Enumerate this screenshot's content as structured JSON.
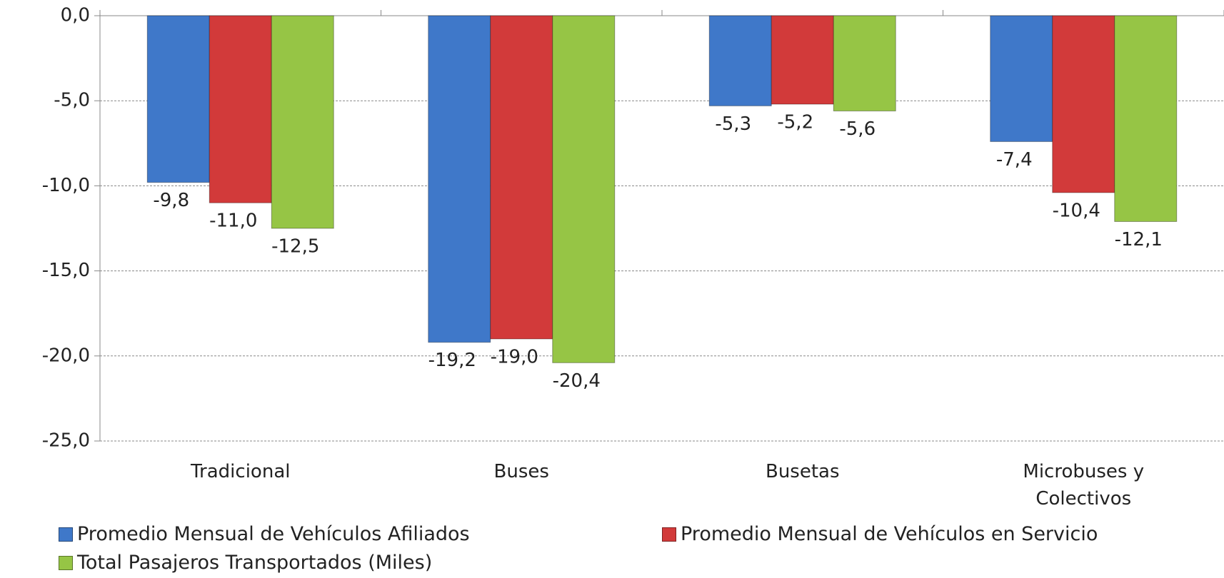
{
  "chart_data": {
    "type": "bar",
    "categories": [
      "Tradicional",
      "Buses",
      "Busetas",
      "Microbuses y\nColectivos"
    ],
    "series": [
      {
        "name": "Promedio Mensual de Vehículos Afiliados",
        "color": "#3f78c9",
        "values": [
          -9.8,
          -19.2,
          -5.3,
          -7.4
        ],
        "value_labels": [
          "-9,8",
          "-19,2",
          "-5,3",
          "-7,4"
        ]
      },
      {
        "name": "Promedio Mensual de Vehículos en Servicio",
        "color": "#d23a3a",
        "values": [
          -11.0,
          -19.0,
          -5.2,
          -10.4
        ],
        "value_labels": [
          "-11,0",
          "-19,0",
          "-5,2",
          "-10,4"
        ]
      },
      {
        "name": "Total Pasajeros Transportados (Miles)",
        "color": "#96c545",
        "values": [
          -12.5,
          -20.4,
          -5.6,
          -12.1
        ],
        "value_labels": [
          "-12,5",
          "-20,4",
          "-5,6",
          "-12,1"
        ]
      }
    ],
    "ylim": [
      -25,
      0
    ],
    "yticks": [
      {
        "value": 0,
        "label": "0,0"
      },
      {
        "value": -5,
        "label": "-5,0"
      },
      {
        "value": -10,
        "label": "-10,0"
      },
      {
        "value": -15,
        "label": "-15,0"
      },
      {
        "value": -20,
        "label": "-20,0"
      },
      {
        "value": -25,
        "label": "-25,0"
      }
    ],
    "grid": true
  }
}
